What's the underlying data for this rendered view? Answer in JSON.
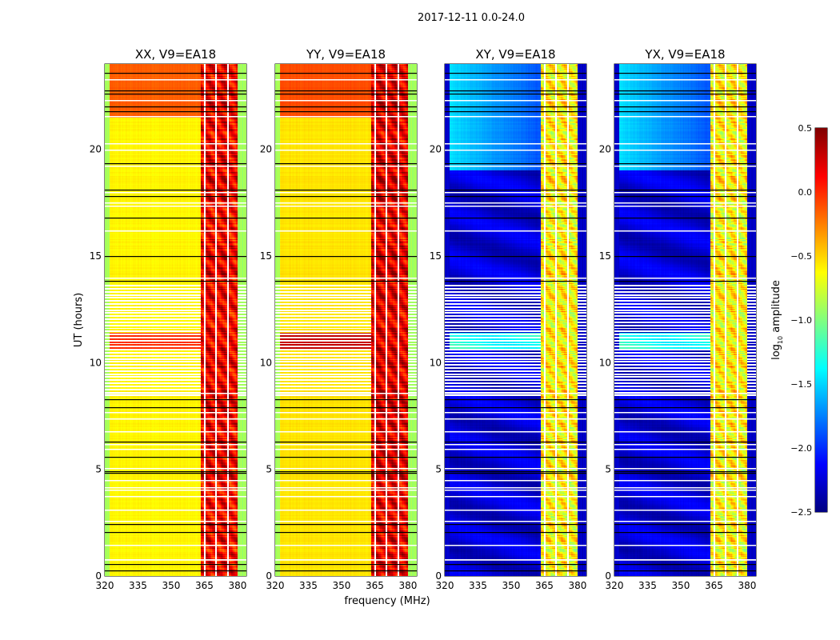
{
  "chart_data": {
    "type": "heatmap",
    "title": "2017-12-11 0.0-24.0",
    "xlabel": "frequency (MHz)",
    "ylabel": "UT (hours)",
    "xlim": [
      320,
      384
    ],
    "ylim": [
      0,
      24
    ],
    "xticks": [
      "320",
      "335",
      "350",
      "365",
      "380"
    ],
    "xtick_values": [
      320,
      335,
      350,
      365,
      380
    ],
    "yticks": [
      "0",
      "5",
      "10",
      "15",
      "20"
    ],
    "ytick_values": [
      0,
      5,
      10,
      15,
      20
    ],
    "colorbar": {
      "label": "log10 amplitude",
      "label_main": "log",
      "label_sub": "10",
      "label_rest": " amplitude",
      "colormap": "jet",
      "range": [
        -2.5,
        0.5
      ],
      "ticks": [
        "0.5",
        "0.0",
        "−0.5",
        "−1.0",
        "−1.5",
        "−2.0",
        "−2.5"
      ],
      "tick_values": [
        0.5,
        0.0,
        -0.5,
        -1.0,
        -1.5,
        -2.0,
        -2.5
      ]
    },
    "rfi_band_mhz": [
      363.5,
      380
    ],
    "rfi_band_gaps_mhz": [
      365.2,
      370.2,
      375.6
    ],
    "band_edge_rolloff_mhz": [
      [
        320,
        322
      ],
      [
        380,
        384
      ]
    ],
    "flagged_white_ut": [
      0.78,
      0.8,
      1.45,
      2.6,
      3.1,
      3.75,
      4.05,
      4.15,
      4.5,
      5.05,
      5.95,
      6.2,
      6.8,
      7.4,
      7.7,
      8.6,
      14.0,
      16.2,
      17.35,
      17.5,
      18.0,
      19.25,
      20.0,
      20.3,
      21.55,
      22.3,
      23.3
    ],
    "black_lines_ut": [
      0.25,
      0.55,
      2.05,
      2.45,
      4.85,
      4.9,
      5.6,
      6.3,
      7.9,
      8.3,
      13.85,
      15.0,
      16.8,
      17.8,
      18.1,
      19.35,
      21.8,
      22.0,
      22.6,
      22.75,
      23.6
    ],
    "striped_interval_ut": [
      8.4,
      13.7
    ],
    "panels": [
      {
        "title": "XX, V9=EA18",
        "kind": "parallel",
        "background": -0.6,
        "edge": -0.9,
        "band": 0.15,
        "top_interval_ut": [
          21.5,
          24
        ],
        "top_background": -0.15,
        "high_interval_ut": [
          10.6,
          11.4
        ],
        "high_background": 0.0
      },
      {
        "title": "YY, V9=EA18",
        "kind": "parallel",
        "background": -0.55,
        "edge": -0.9,
        "band": 0.2,
        "top_interval_ut": [
          21.5,
          24
        ],
        "top_background": -0.1,
        "high_interval_ut": [
          10.6,
          11.4
        ],
        "high_background": 0.3
      },
      {
        "title": "XY, V9=EA18",
        "kind": "cross",
        "background": -2.25,
        "edge": -2.3,
        "band": -0.6,
        "top_interval_ut": [
          19.0,
          24
        ],
        "top_background": -1.75,
        "high_interval_ut": [
          10.6,
          11.4
        ],
        "high_background": -1.3
      },
      {
        "title": "YX, V9=EA18",
        "kind": "cross",
        "background": -2.25,
        "edge": -2.3,
        "band": -0.6,
        "top_interval_ut": [
          19.0,
          24
        ],
        "top_background": -1.75,
        "high_interval_ut": [
          10.6,
          11.4
        ],
        "high_background": -1.3
      }
    ]
  }
}
